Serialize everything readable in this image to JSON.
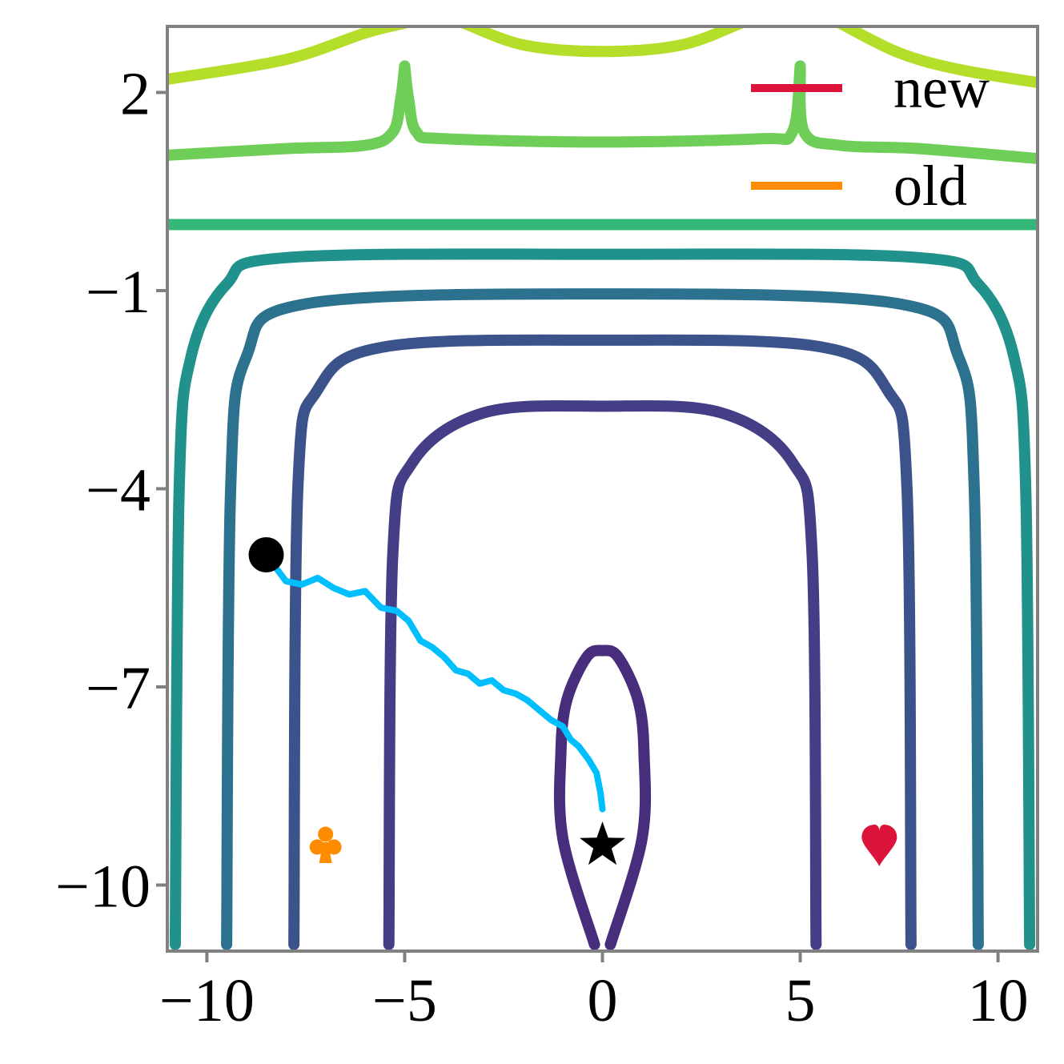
{
  "chart_data": {
    "type": "contour",
    "title": "",
    "xlabel": "",
    "ylabel": "",
    "xlim": [
      -11,
      11
    ],
    "ylim": [
      -11,
      3
    ],
    "xticks": [
      -10,
      -5,
      0,
      5,
      10
    ],
    "yticks": [
      2,
      -1,
      -4,
      -7,
      -10
    ],
    "xtick_labels": [
      "−10",
      "−5",
      "0",
      "5",
      "10"
    ],
    "ytick_labels": [
      "2",
      "−1",
      "−4",
      "−7",
      "−10"
    ],
    "legend": {
      "placement": "top-right",
      "entries": [
        {
          "label": "new",
          "color": "#dc143c"
        },
        {
          "label": "old",
          "color": "#ff8c00"
        }
      ]
    },
    "contours": [
      {
        "color": "#b5de2b",
        "points": [
          [
            -11,
            2.2
          ],
          [
            -8,
            2.5
          ],
          [
            -6,
            2.9
          ],
          [
            -5,
            3.05
          ]
        ]
      },
      {
        "color": "#b5de2b",
        "points": [
          [
            -3.5,
            3.05
          ],
          [
            -2,
            2.72
          ],
          [
            0,
            2.62
          ],
          [
            2,
            2.72
          ],
          [
            3.5,
            3.05
          ]
        ]
      },
      {
        "color": "#b5de2b",
        "points": [
          [
            6,
            3.05
          ],
          [
            7.5,
            2.6
          ],
          [
            9,
            2.35
          ],
          [
            11,
            2.15
          ]
        ]
      },
      {
        "color": "#6ece58",
        "points": [
          [
            -11,
            1.05
          ],
          [
            -8,
            1.15
          ],
          [
            -6,
            1.2
          ],
          [
            -5.3,
            1.4
          ],
          [
            -5.1,
            1.9
          ],
          [
            -5,
            2.4
          ]
        ]
      },
      {
        "color": "#6ece58",
        "points": [
          [
            -5,
            2.4
          ],
          [
            -4.9,
            1.9
          ],
          [
            -4.7,
            1.4
          ],
          [
            -4,
            1.3
          ],
          [
            0,
            1.25
          ],
          [
            4,
            1.3
          ],
          [
            4.8,
            1.4
          ],
          [
            5,
            2.4
          ]
        ]
      },
      {
        "color": "#6ece58",
        "points": [
          [
            5,
            2.4
          ],
          [
            5.1,
            1.4
          ],
          [
            6,
            1.2
          ],
          [
            8,
            1.15
          ],
          [
            11,
            1.0
          ]
        ]
      },
      {
        "color": "#35b779",
        "points": [
          [
            -11,
            0.0
          ],
          [
            11,
            0.0
          ]
        ]
      },
      {
        "color": "#21918c",
        "points": [
          [
            -10.8,
            -10.9
          ],
          [
            -10.7,
            -4
          ],
          [
            -10.4,
            -2
          ],
          [
            -9.5,
            -0.9
          ],
          [
            -8,
            -0.5
          ],
          [
            0,
            -0.45
          ],
          [
            8,
            -0.5
          ],
          [
            9.5,
            -0.9
          ],
          [
            10.4,
            -2
          ],
          [
            10.7,
            -4
          ],
          [
            10.8,
            -10.9
          ]
        ]
      },
      {
        "color": "#2c728e",
        "points": [
          [
            -9.5,
            -10.9
          ],
          [
            -9.4,
            -4
          ],
          [
            -9,
            -2
          ],
          [
            -7.5,
            -1.2
          ],
          [
            0,
            -1.05
          ],
          [
            7.5,
            -1.2
          ],
          [
            9,
            -2
          ],
          [
            9.4,
            -4
          ],
          [
            9.5,
            -10.9
          ]
        ]
      },
      {
        "color": "#3b528b",
        "points": [
          [
            -7.8,
            -10.9
          ],
          [
            -7.7,
            -4
          ],
          [
            -7.2,
            -2.5
          ],
          [
            -5.5,
            -1.85
          ],
          [
            0,
            -1.75
          ],
          [
            5.5,
            -1.85
          ],
          [
            7.2,
            -2.5
          ],
          [
            7.7,
            -4
          ],
          [
            7.8,
            -10.9
          ]
        ]
      },
      {
        "color": "#433e85",
        "points": [
          [
            -5.4,
            -10.9
          ],
          [
            -5.3,
            -5
          ],
          [
            -4.8,
            -3.6
          ],
          [
            -3,
            -2.85
          ],
          [
            0,
            -2.75
          ],
          [
            3,
            -2.85
          ],
          [
            4.8,
            -3.6
          ],
          [
            5.3,
            -5
          ],
          [
            5.4,
            -10.9
          ]
        ]
      },
      {
        "color": "#472d7b",
        "points": [
          [
            -0.2,
            -10.9
          ],
          [
            -1,
            -9.3
          ],
          [
            -1.05,
            -8
          ],
          [
            -0.9,
            -7.2
          ],
          [
            -0.4,
            -6.55
          ],
          [
            0,
            -6.45
          ],
          [
            0.4,
            -6.55
          ],
          [
            0.9,
            -7.2
          ],
          [
            1.05,
            -8
          ],
          [
            1,
            -9.3
          ],
          [
            0.2,
            -10.9
          ]
        ]
      }
    ],
    "trajectory": {
      "color": "#00bfff",
      "points": [
        [
          -8.5,
          -5.0
        ],
        [
          -8.0,
          -5.4
        ],
        [
          -7.6,
          -5.45
        ],
        [
          -7.2,
          -5.35
        ],
        [
          -6.8,
          -5.5
        ],
        [
          -6.4,
          -5.6
        ],
        [
          -6.0,
          -5.55
        ],
        [
          -5.6,
          -5.8
        ],
        [
          -5.2,
          -5.85
        ],
        [
          -4.9,
          -6.0
        ],
        [
          -4.6,
          -6.3
        ],
        [
          -4.3,
          -6.4
        ],
        [
          -4.0,
          -6.55
        ],
        [
          -3.7,
          -6.75
        ],
        [
          -3.4,
          -6.8
        ],
        [
          -3.1,
          -6.95
        ],
        [
          -2.8,
          -6.9
        ],
        [
          -2.5,
          -7.05
        ],
        [
          -2.2,
          -7.1
        ],
        [
          -1.9,
          -7.2
        ],
        [
          -1.6,
          -7.35
        ],
        [
          -1.3,
          -7.5
        ],
        [
          -1.0,
          -7.6
        ],
        [
          -0.8,
          -7.8
        ],
        [
          -0.6,
          -7.9
        ],
        [
          -0.35,
          -8.1
        ],
        [
          -0.15,
          -8.3
        ],
        [
          -0.05,
          -8.6
        ],
        [
          0.0,
          -8.85
        ]
      ]
    },
    "markers": [
      {
        "name": "start",
        "shape": "circle",
        "color": "#000000",
        "x": -8.5,
        "y": -5.0
      },
      {
        "name": "optimum",
        "shape": "star",
        "color": "#000000",
        "x": 0.0,
        "y": -9.4
      },
      {
        "name": "old-minimum",
        "shape": "club",
        "color": "#ff8c00",
        "x": -7.0,
        "y": -9.4
      },
      {
        "name": "new-minimum",
        "shape": "heart",
        "color": "#dc143c",
        "x": 7.0,
        "y": -9.4
      }
    ],
    "grid": false,
    "frame_color": "#808080"
  }
}
